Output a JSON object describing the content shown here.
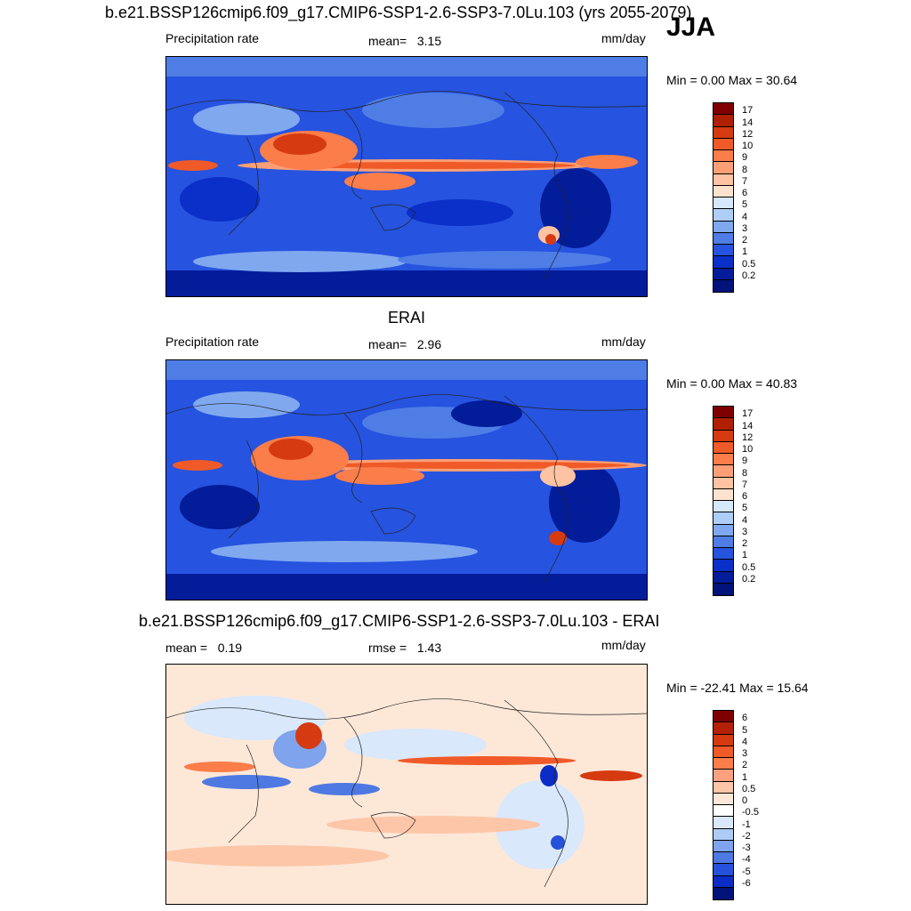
{
  "figure": {
    "title": "b.e21.BSSP126cmip6.f09_g17.CMIP6-SSP1-2.6-SSP3-7.0Lu.103 (yrs 2055-2079)",
    "season": "JJA"
  },
  "panels": [
    {
      "title": "",
      "variable": "Precipitation rate",
      "stat_label": "mean=",
      "stat_value": "3.15",
      "stat2_label": "",
      "stat2_value": "",
      "units": "mm/day",
      "minmax": "Min =   0.00 Max =  30.64",
      "colorbar_labels": [
        "17",
        "14",
        "12",
        "10",
        "9",
        "8",
        "7",
        "6",
        "5",
        "4",
        "3",
        "2",
        "1",
        "0.5",
        "0.2"
      ],
      "colorbar_colors": [
        "#800000",
        "#b02000",
        "#d63a10",
        "#f05a28",
        "#fa7d4a",
        "#fc9f76",
        "#fdc3a2",
        "#fde3ce",
        "#d6e8fb",
        "#aecdf7",
        "#7fa8ef",
        "#4e7de6",
        "#2653df",
        "#0b2fc9",
        "#031c9a",
        "#00137a"
      ]
    },
    {
      "title": "ERAI",
      "variable": "Precipitation rate",
      "stat_label": "mean=",
      "stat_value": "2.96",
      "stat2_label": "",
      "stat2_value": "",
      "units": "mm/day",
      "minmax": "Min =   0.00 Max =  40.83",
      "colorbar_labels": [
        "17",
        "14",
        "12",
        "10",
        "9",
        "8",
        "7",
        "6",
        "5",
        "4",
        "3",
        "2",
        "1",
        "0.5",
        "0.2"
      ],
      "colorbar_colors": [
        "#800000",
        "#b02000",
        "#d63a10",
        "#f05a28",
        "#fa7d4a",
        "#fc9f76",
        "#fdc3a2",
        "#fde3ce",
        "#d6e8fb",
        "#aecdf7",
        "#7fa8ef",
        "#4e7de6",
        "#2653df",
        "#0b2fc9",
        "#031c9a",
        "#00137a"
      ]
    },
    {
      "title": "b.e21.BSSP126cmip6.f09_g17.CMIP6-SSP1-2.6-SSP3-7.0Lu.103 - ERAI",
      "variable": "",
      "stat_label": "mean =",
      "stat_value": "0.19",
      "stat2_label": "rmse =",
      "stat2_value": "1.43",
      "units": "mm/day",
      "minmax": "Min = -22.41 Max =  15.64",
      "colorbar_labels": [
        "6",
        "5",
        "4",
        "3",
        "2",
        "1",
        "0.5",
        "0",
        "-0.5",
        "-1",
        "-2",
        "-3",
        "-4",
        "-5",
        "-6"
      ],
      "colorbar_colors": [
        "#800000",
        "#b52008",
        "#d63a10",
        "#f05a28",
        "#fa7d4a",
        "#fca080",
        "#fdc6a8",
        "#fde8d8",
        "#ffffff",
        "#d9e8fb",
        "#aecbf5",
        "#7fa3ec",
        "#4e79e3",
        "#2651da",
        "#0b2cc6",
        "#00137a"
      ]
    }
  ]
}
